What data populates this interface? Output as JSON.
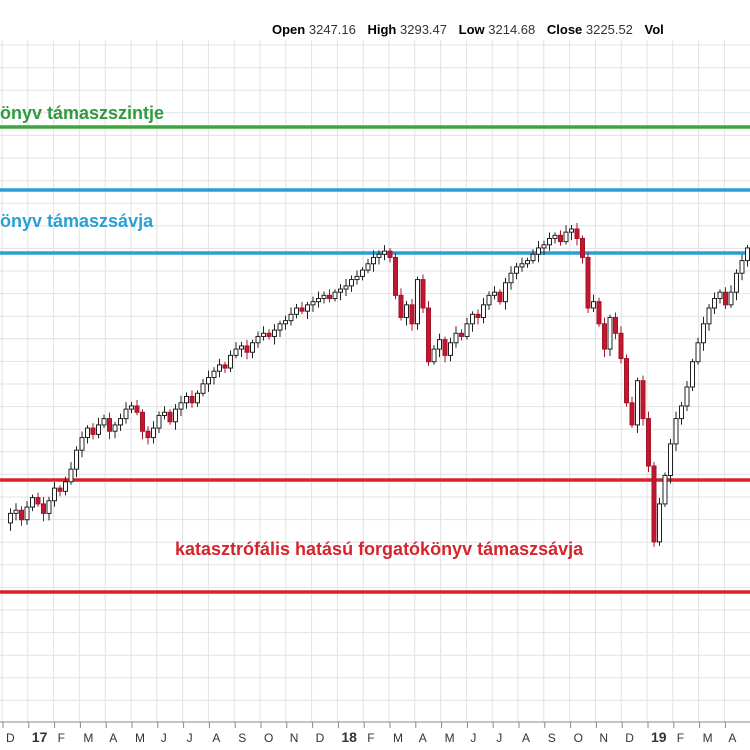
{
  "ohlc": {
    "open_label": "Open",
    "open": "3247.16",
    "high_label": "High",
    "high": "3293.47",
    "low_label": "Low",
    "low": "3214.68",
    "close_label": "Close",
    "close": "3225.52",
    "vol_label": "Vol"
  },
  "chart_data": {
    "type": "candlestick",
    "grid": true,
    "x_tick_labels": [
      "D",
      "17",
      "F",
      "M",
      "A",
      "M",
      "J",
      "J",
      "A",
      "S",
      "O",
      "N",
      "D",
      "18",
      "F",
      "M",
      "A",
      "M",
      "J",
      "J",
      "A",
      "S",
      "O",
      "N",
      "D",
      "19",
      "F",
      "M",
      "A"
    ],
    "bold_ticks": [
      "17",
      "18",
      "19"
    ],
    "annotations": [
      {
        "text": "önyv támaszszintje",
        "color": "#2e9b3e"
      },
      {
        "text": "önyv támaszsávja",
        "color": "#2a9fd6"
      },
      {
        "text": "katasztrófális hatású forgatókönyv támaszsávja",
        "color": "#d7242c"
      }
    ],
    "horizontal_lines": [
      {
        "name": "green-support-line",
        "color": "#3aa63a"
      },
      {
        "name": "blue-band-top-line",
        "color": "#2a9fd6"
      },
      {
        "name": "blue-band-bottom-line",
        "color": "#2a9fd6"
      },
      {
        "name": "red-band-top-line",
        "color": "#d7242c"
      },
      {
        "name": "red-band-bottom-line",
        "color": "#d7242c"
      }
    ],
    "price_path_pct": [
      [
        0,
        0.93
      ],
      [
        4,
        0.9
      ],
      [
        8,
        0.89
      ],
      [
        12,
        0.92
      ],
      [
        16,
        0.88
      ],
      [
        20,
        0.85
      ],
      [
        24,
        0.87
      ],
      [
        28,
        0.9
      ],
      [
        32,
        0.86
      ],
      [
        36,
        0.82
      ],
      [
        40,
        0.83
      ],
      [
        44,
        0.8
      ],
      [
        48,
        0.76
      ],
      [
        52,
        0.7
      ],
      [
        56,
        0.66
      ],
      [
        60,
        0.63
      ],
      [
        64,
        0.65
      ],
      [
        68,
        0.62
      ],
      [
        72,
        0.6
      ],
      [
        76,
        0.64
      ],
      [
        80,
        0.62
      ],
      [
        84,
        0.6
      ],
      [
        88,
        0.57
      ],
      [
        92,
        0.56
      ],
      [
        96,
        0.58
      ],
      [
        100,
        0.64
      ],
      [
        104,
        0.66
      ],
      [
        108,
        0.63
      ],
      [
        112,
        0.59
      ],
      [
        116,
        0.58
      ],
      [
        120,
        0.61
      ],
      [
        124,
        0.57
      ],
      [
        128,
        0.55
      ],
      [
        132,
        0.53
      ],
      [
        136,
        0.55
      ],
      [
        140,
        0.52
      ],
      [
        144,
        0.49
      ],
      [
        148,
        0.47
      ],
      [
        152,
        0.45
      ],
      [
        156,
        0.43
      ],
      [
        160,
        0.44
      ],
      [
        164,
        0.4
      ],
      [
        168,
        0.38
      ],
      [
        172,
        0.37
      ],
      [
        176,
        0.39
      ],
      [
        180,
        0.36
      ],
      [
        184,
        0.34
      ],
      [
        188,
        0.33
      ],
      [
        192,
        0.34
      ],
      [
        196,
        0.32
      ],
      [
        200,
        0.3
      ],
      [
        204,
        0.29
      ],
      [
        208,
        0.27
      ],
      [
        212,
        0.25
      ],
      [
        216,
        0.26
      ],
      [
        220,
        0.24
      ],
      [
        224,
        0.23
      ],
      [
        228,
        0.22
      ],
      [
        232,
        0.21
      ],
      [
        236,
        0.22
      ],
      [
        240,
        0.2
      ],
      [
        244,
        0.19
      ],
      [
        248,
        0.18
      ],
      [
        252,
        0.16
      ],
      [
        256,
        0.15
      ],
      [
        260,
        0.13
      ],
      [
        264,
        0.11
      ],
      [
        268,
        0.09
      ],
      [
        272,
        0.08
      ],
      [
        276,
        0.07
      ],
      [
        280,
        0.09
      ],
      [
        284,
        0.21
      ],
      [
        288,
        0.28
      ],
      [
        292,
        0.24
      ],
      [
        296,
        0.3
      ],
      [
        300,
        0.16
      ],
      [
        304,
        0.25
      ],
      [
        308,
        0.42
      ],
      [
        312,
        0.38
      ],
      [
        316,
        0.35
      ],
      [
        320,
        0.4
      ],
      [
        324,
        0.36
      ],
      [
        328,
        0.33
      ],
      [
        332,
        0.34
      ],
      [
        336,
        0.3
      ],
      [
        340,
        0.27
      ],
      [
        344,
        0.28
      ],
      [
        348,
        0.24
      ],
      [
        352,
        0.21
      ],
      [
        356,
        0.2
      ],
      [
        360,
        0.23
      ],
      [
        364,
        0.17
      ],
      [
        368,
        0.14
      ],
      [
        372,
        0.12
      ],
      [
        376,
        0.11
      ],
      [
        380,
        0.1
      ],
      [
        384,
        0.08
      ],
      [
        388,
        0.06
      ],
      [
        392,
        0.05
      ],
      [
        396,
        0.03
      ],
      [
        400,
        0.02
      ],
      [
        404,
        0.04
      ],
      [
        408,
        0.01
      ],
      [
        412,
        0.0
      ],
      [
        416,
        0.03
      ],
      [
        420,
        0.09
      ],
      [
        424,
        0.25
      ],
      [
        428,
        0.23
      ],
      [
        432,
        0.3
      ],
      [
        436,
        0.38
      ],
      [
        440,
        0.28
      ],
      [
        444,
        0.33
      ],
      [
        448,
        0.41
      ],
      [
        452,
        0.55
      ],
      [
        456,
        0.62
      ],
      [
        460,
        0.48
      ],
      [
        464,
        0.6
      ],
      [
        468,
        0.75
      ],
      [
        472,
        0.99
      ],
      [
        476,
        0.87
      ],
      [
        480,
        0.78
      ],
      [
        484,
        0.68
      ],
      [
        488,
        0.6
      ],
      [
        492,
        0.56
      ],
      [
        496,
        0.5
      ],
      [
        500,
        0.42
      ],
      [
        504,
        0.36
      ],
      [
        508,
        0.3
      ],
      [
        512,
        0.25
      ],
      [
        516,
        0.22
      ],
      [
        520,
        0.2
      ],
      [
        524,
        0.24
      ],
      [
        528,
        0.2
      ],
      [
        532,
        0.14
      ],
      [
        536,
        0.1
      ],
      [
        540,
        0.06
      ]
    ]
  }
}
